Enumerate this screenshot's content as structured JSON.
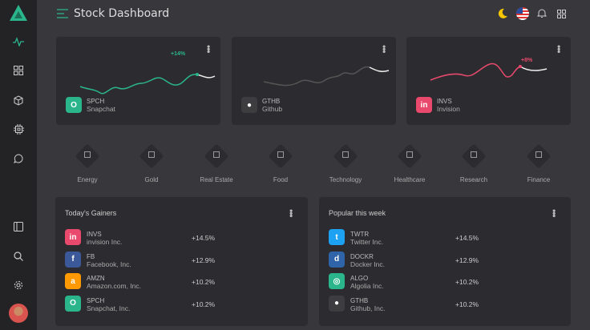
{
  "app": {
    "title": "Stock Dashboard"
  },
  "sidebar": {
    "items": [
      {
        "icon": "activity-icon",
        "active": true
      },
      {
        "icon": "grid-icon"
      },
      {
        "icon": "cube-icon"
      },
      {
        "icon": "cpu-icon"
      },
      {
        "icon": "chat-icon"
      }
    ],
    "bottom": [
      {
        "icon": "sidebar-toggle-icon"
      },
      {
        "icon": "search-icon"
      },
      {
        "icon": "gear-icon"
      },
      {
        "icon": "avatar"
      }
    ]
  },
  "header": {
    "icons": [
      "moon-icon",
      "us-flag-icon",
      "bell-icon",
      "apps-icon"
    ]
  },
  "colors": {
    "accent": "#2bb58a",
    "negative": "#e8496d",
    "amazon": "#ff9900",
    "facebook": "#3b5998",
    "twitter": "#1da1f2",
    "docker": "#2f64a8"
  },
  "cards": [
    {
      "ticker": "SPCH",
      "name": "Snapchat",
      "change": "+14%",
      "color": "#2bb58a"
    },
    {
      "ticker": "GTHB",
      "name": "Github",
      "change": "",
      "color": "#3d3d40"
    },
    {
      "ticker": "INVS",
      "name": "Invision",
      "change": "+8%",
      "color": "#e8496d"
    }
  ],
  "categories": [
    {
      "label": "Energy"
    },
    {
      "label": "Gold"
    },
    {
      "label": "Real Estate"
    },
    {
      "label": "Food"
    },
    {
      "label": "Technology"
    },
    {
      "label": "Healthcare"
    },
    {
      "label": "Research"
    },
    {
      "label": "Finance"
    }
  ],
  "gainers": {
    "title": "Today's Gainers",
    "rows": [
      {
        "ticker": "INVS",
        "name": "invision Inc.",
        "change": "+14.5%",
        "color": "#e8496d",
        "glyph": "in"
      },
      {
        "ticker": "FB",
        "name": "Facebook, Inc.",
        "change": "+12.9%",
        "color": "#3b5998",
        "glyph": "f"
      },
      {
        "ticker": "AMZN",
        "name": "Amazon.com, Inc.",
        "change": "+10.2%",
        "color": "#ff9900",
        "glyph": "a"
      },
      {
        "ticker": "SPCH",
        "name": "Snapchat, Inc.",
        "change": "+10.2%",
        "color": "#2bb58a",
        "glyph": "O"
      }
    ]
  },
  "popular": {
    "title": "Popular this week",
    "rows": [
      {
        "ticker": "TWTR",
        "name": "Twitter Inc.",
        "change": "+14.5%",
        "color": "#1da1f2",
        "glyph": "t"
      },
      {
        "ticker": "DOCKR",
        "name": "Docker Inc.",
        "change": "+12.9%",
        "color": "#2f64a8",
        "glyph": "d"
      },
      {
        "ticker": "ALGO",
        "name": "Algolia Inc.",
        "change": "+10.2%",
        "color": "#2bb58a",
        "glyph": "◎"
      },
      {
        "ticker": "GTHB",
        "name": "Github, Inc.",
        "change": "+10.2%",
        "color": "#3d3d40",
        "glyph": "●"
      }
    ]
  }
}
